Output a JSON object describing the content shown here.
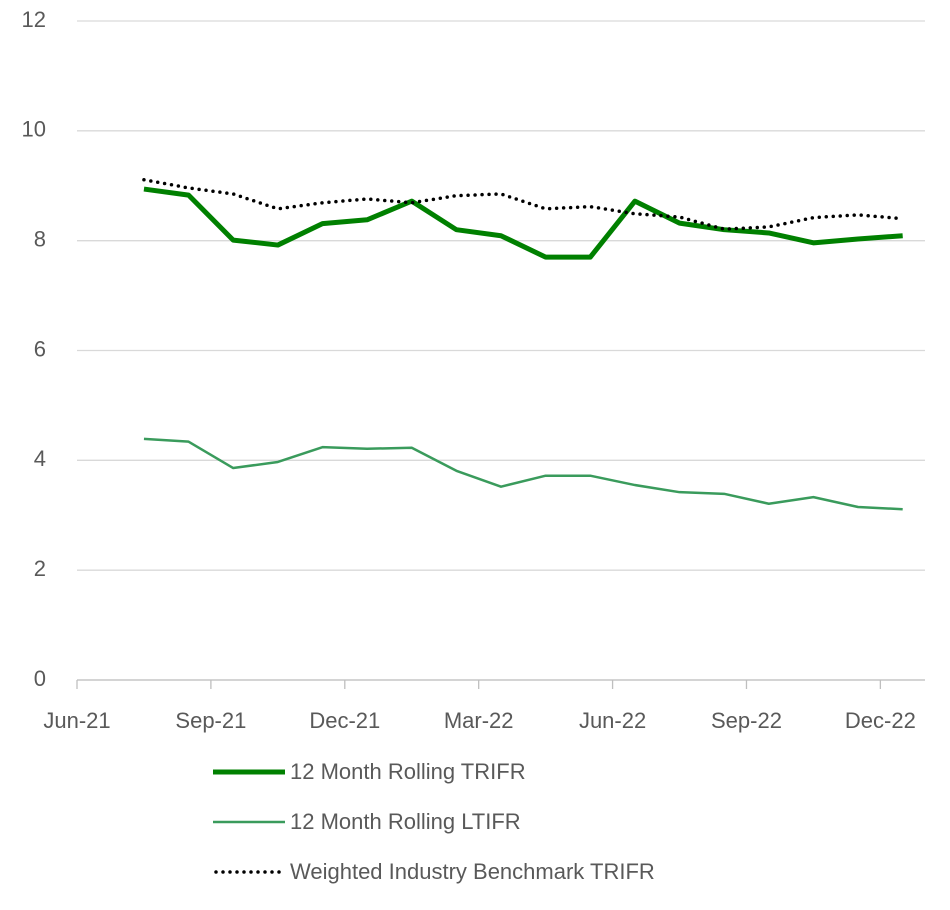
{
  "chart_data": {
    "type": "line",
    "xlim": [
      0,
      19
    ],
    "xticks": [
      {
        "value": 0,
        "label": "Jun-21"
      },
      {
        "value": 3,
        "label": "Sep-21"
      },
      {
        "value": 6,
        "label": "Dec-21"
      },
      {
        "value": 9,
        "label": "Mar-22"
      },
      {
        "value": 12,
        "label": "Jun-22"
      },
      {
        "value": 15,
        "label": "Sep-22"
      },
      {
        "value": 18,
        "label": "Dec-22"
      }
    ],
    "x": [
      1.5,
      2.5,
      3.5,
      4.5,
      5.5,
      6.5,
      7.5,
      8.5,
      9.5,
      10.5,
      11.5,
      12.5,
      13.5,
      14.5,
      15.5,
      16.5,
      17.5,
      18.5
    ],
    "ylim": [
      0,
      12
    ],
    "yticks": [
      0,
      2,
      4,
      6,
      8,
      10,
      12
    ],
    "grid": true,
    "legend": "bottom",
    "series": [
      {
        "name": "12 Month Rolling TRIFR",
        "color": "#008000",
        "width": 5,
        "style": "solid",
        "values": [
          8.94,
          8.83,
          8.01,
          7.92,
          8.31,
          8.38,
          8.72,
          8.2,
          8.09,
          7.7,
          7.7,
          8.72,
          8.32,
          8.2,
          8.14,
          7.96,
          8.03,
          8.09
        ]
      },
      {
        "name": "12 Month Rolling LTIFR",
        "color": "#3a9b5c",
        "width": 2.5,
        "style": "solid",
        "values": [
          4.39,
          4.34,
          3.86,
          3.97,
          4.24,
          4.21,
          4.23,
          3.81,
          3.52,
          3.72,
          3.72,
          3.55,
          3.42,
          3.39,
          3.21,
          3.33,
          3.15,
          3.11
        ]
      },
      {
        "name": "Weighted Industry Benchmark TRIFR",
        "color": "#000000",
        "width": 3.5,
        "style": "dotted",
        "values": [
          9.11,
          8.96,
          8.85,
          8.58,
          8.69,
          8.76,
          8.69,
          8.82,
          8.85,
          8.58,
          8.62,
          8.49,
          8.43,
          8.21,
          8.25,
          8.42,
          8.47,
          8.4
        ]
      }
    ]
  }
}
